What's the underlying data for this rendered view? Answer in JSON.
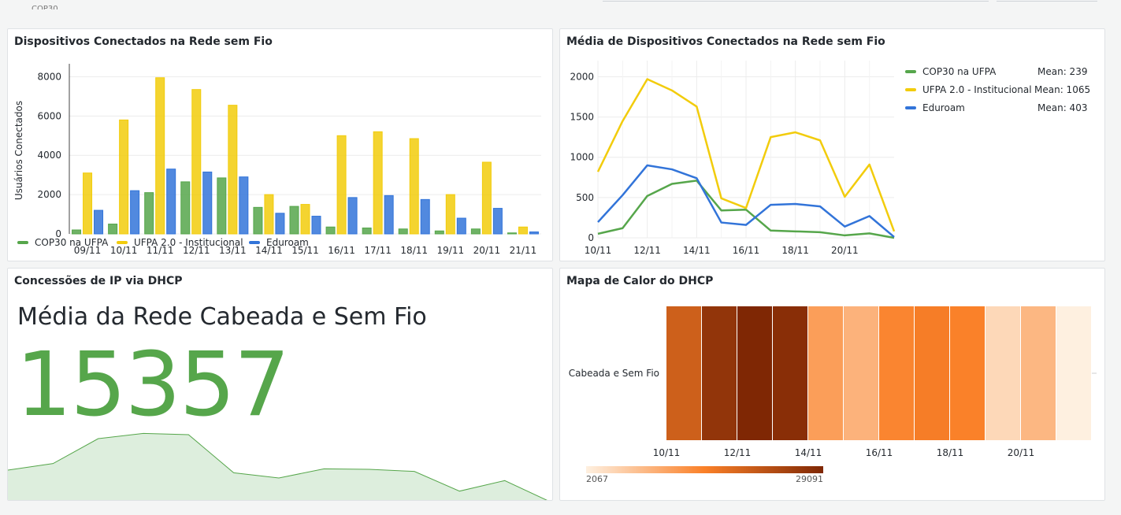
{
  "toolbar": {
    "partial_label": "COP30"
  },
  "colors": {
    "cop30": "#56a64b",
    "ufpa": "#f2cc0c",
    "eduroam": "#3274d9",
    "green_fill": "#ddeedd"
  },
  "panel_bar": {
    "title": "Dispositivos Conectados na Rede sem Fio",
    "legend": [
      {
        "name": "COP30 na UFPA",
        "color": "#56a64b"
      },
      {
        "name": "UFPA 2.0 - Institucional",
        "color": "#f2cc0c"
      },
      {
        "name": "Eduroam",
        "color": "#3274d9"
      }
    ]
  },
  "chart_data": [
    {
      "type": "bar",
      "title": "Dispositivos Conectados na Rede sem Fio",
      "xlabel": "",
      "ylabel": "Usuários Conectados",
      "ylim": [
        0,
        8500
      ],
      "yticks": [
        0,
        2000,
        4000,
        6000,
        8000
      ],
      "categories": [
        "09/11",
        "10/11",
        "11/11",
        "12/11",
        "13/11",
        "14/11",
        "15/11",
        "16/11",
        "17/11",
        "18/11",
        "19/11",
        "20/11",
        "21/11"
      ],
      "series": [
        {
          "name": "COP30 na UFPA",
          "color": "#56a64b",
          "values": [
            200,
            500,
            2100,
            2650,
            2850,
            1350,
            1400,
            350,
            300,
            250,
            150,
            250,
            50
          ]
        },
        {
          "name": "UFPA 2.0 - Institucional",
          "color": "#f2cc0c",
          "values": [
            3100,
            5800,
            7950,
            7350,
            6550,
            2000,
            1500,
            5000,
            5200,
            4850,
            2000,
            3650,
            350
          ]
        },
        {
          "name": "Eduroam",
          "color": "#3274d9",
          "values": [
            1200,
            2200,
            3300,
            3150,
            2900,
            1050,
            900,
            1850,
            1950,
            1750,
            800,
            1300,
            100
          ]
        }
      ],
      "legend_position": "bottom-left"
    },
    {
      "type": "line",
      "title": "Média de Dispositivos Conectados na Rede sem Fio",
      "ylim": [
        0,
        2200
      ],
      "yticks": [
        0,
        500,
        1000,
        1500,
        2000
      ],
      "x": [
        0,
        1,
        2,
        3,
        4,
        5,
        6,
        7,
        8,
        9,
        10,
        11,
        12
      ],
      "x_tick_labels": [
        {
          "x": 0,
          "label": "10/11"
        },
        {
          "x": 2,
          "label": "12/11"
        },
        {
          "x": 4,
          "label": "14/11"
        },
        {
          "x": 6,
          "label": "16/11"
        },
        {
          "x": 8,
          "label": "18/11"
        },
        {
          "x": 10,
          "label": "20/11"
        }
      ],
      "series": [
        {
          "name": "COP30 na UFPA",
          "color": "#56a64b",
          "mean_label": "Mean: 239",
          "values": [
            50,
            120,
            520,
            670,
            710,
            340,
            350,
            90,
            80,
            70,
            30,
            55,
            0
          ]
        },
        {
          "name": "UFPA 2.0 - Institucional",
          "color": "#f2cc0c",
          "mean_label": "Mean: 1065",
          "values": [
            820,
            1450,
            1970,
            1830,
            1630,
            490,
            370,
            1250,
            1310,
            1210,
            510,
            910,
            80
          ]
        },
        {
          "name": "Eduroam",
          "color": "#3274d9",
          "mean_label": "Mean: 403",
          "values": [
            195,
            530,
            900,
            850,
            740,
            190,
            160,
            410,
            420,
            390,
            140,
            270,
            10
          ]
        }
      ],
      "legend_position": "right"
    },
    {
      "type": "area",
      "title": "Concessões de IP via DHCP (sparkline)",
      "ylim": [
        0,
        30000
      ],
      "values": [
        12000,
        14500,
        24000,
        26000,
        25500,
        11000,
        9000,
        12500,
        12300,
        11500,
        4000,
        8000,
        0
      ]
    },
    {
      "type": "heatmap",
      "title": "Mapa de Calor do DHCP",
      "row_label": "Cabeada e Sem Fio",
      "x_tick_labels": [
        "10/11",
        "12/11",
        "14/11",
        "16/11",
        "18/11",
        "20/11"
      ],
      "values": [
        20500,
        27000,
        29091,
        28000,
        12000,
        9500,
        15000,
        16000,
        15500,
        5000,
        9000,
        2067
      ],
      "scale_min": 2067,
      "scale_max": 29091,
      "scale_min_label": "2067",
      "scale_max_label": "29091"
    }
  ],
  "panel_line": {
    "title": "Média de Dispositivos Conectados na Rede sem Fio"
  },
  "panel_stat": {
    "title": "Concessões de IP via DHCP",
    "subtitle": "Média da Rede Cabeada e Sem Fio",
    "value": "15357"
  },
  "panel_heat": {
    "title": "Mapa de Calor do DHCP"
  }
}
